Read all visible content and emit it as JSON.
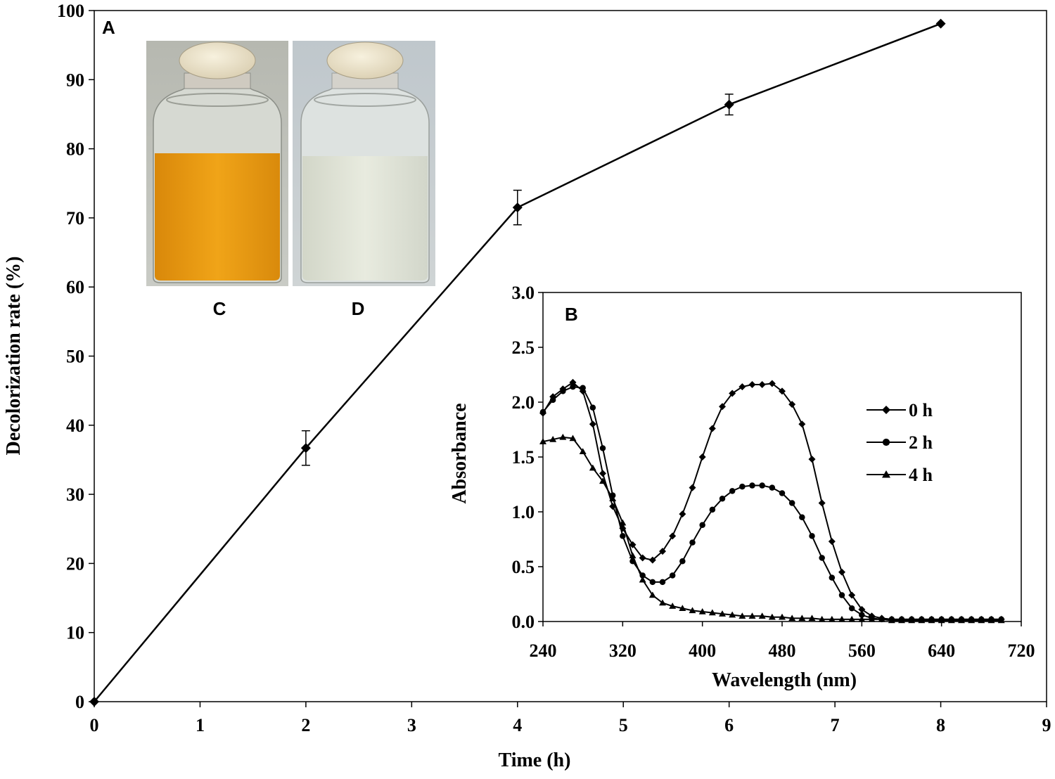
{
  "chart_data": [
    {
      "panel": "A",
      "type": "line",
      "xlabel": "Time (h)",
      "ylabel": "Decolorization  rate (%)",
      "xlim": [
        0,
        9
      ],
      "ylim": [
        0,
        100
      ],
      "x_ticks": [
        "0",
        "1",
        "2",
        "3",
        "4",
        "5",
        "6",
        "7",
        "8",
        "9"
      ],
      "y_ticks": [
        "0",
        "10",
        "20",
        "30",
        "40",
        "50",
        "60",
        "70",
        "80",
        "90",
        "100"
      ],
      "marker": "diamond",
      "color": "#000000",
      "series": [
        {
          "x": [
            0,
            2,
            4,
            6,
            8
          ],
          "y": [
            0,
            36.7,
            71.5,
            86.4,
            98.1
          ],
          "error": [
            0,
            2.5,
            2.5,
            1.5,
            0
          ]
        }
      ],
      "grid": false
    },
    {
      "panel": "B",
      "type": "line",
      "xlabel": "Wavelength (nm)",
      "ylabel": "Absorbance",
      "xlim": [
        240,
        720
      ],
      "ylim": [
        0,
        3.0
      ],
      "x_ticks": [
        "240",
        "320",
        "400",
        "480",
        "560",
        "640",
        "720"
      ],
      "y_ticks": [
        "0.0",
        "0.5",
        "1.0",
        "1.5",
        "2.0",
        "2.5",
        "3.0"
      ],
      "legend_position": "right",
      "grid": false,
      "series": [
        {
          "name": "0 h",
          "marker": "diamond",
          "x": [
            240,
            250,
            260,
            270,
            280,
            290,
            300,
            310,
            320,
            330,
            340,
            350,
            360,
            370,
            380,
            390,
            400,
            410,
            420,
            430,
            440,
            450,
            460,
            470,
            480,
            490,
            500,
            510,
            520,
            530,
            540,
            550,
            560,
            570,
            580,
            590,
            600,
            610,
            620,
            630,
            640,
            650,
            660,
            670,
            680,
            690,
            700
          ],
          "y": [
            1.9,
            2.05,
            2.12,
            2.18,
            2.1,
            1.8,
            1.35,
            1.05,
            0.85,
            0.7,
            0.58,
            0.56,
            0.64,
            0.78,
            0.98,
            1.22,
            1.5,
            1.76,
            1.96,
            2.08,
            2.14,
            2.16,
            2.16,
            2.17,
            2.1,
            1.98,
            1.8,
            1.48,
            1.08,
            0.73,
            0.45,
            0.24,
            0.11,
            0.05,
            0.03,
            0.02,
            0.02,
            0.02,
            0.02,
            0.02,
            0.02,
            0.02,
            0.02,
            0.02,
            0.02,
            0.02,
            0.02
          ]
        },
        {
          "name": "2 h",
          "marker": "circle",
          "x": [
            240,
            250,
            260,
            270,
            280,
            290,
            300,
            310,
            320,
            330,
            340,
            350,
            360,
            370,
            380,
            390,
            400,
            410,
            420,
            430,
            440,
            450,
            460,
            470,
            480,
            490,
            500,
            510,
            520,
            530,
            540,
            550,
            560,
            570,
            580,
            590,
            600,
            610,
            620,
            630,
            640,
            650,
            660,
            670,
            680,
            690,
            700
          ],
          "y": [
            1.91,
            2.02,
            2.1,
            2.14,
            2.13,
            1.95,
            1.58,
            1.15,
            0.78,
            0.55,
            0.42,
            0.36,
            0.36,
            0.42,
            0.55,
            0.72,
            0.88,
            1.02,
            1.12,
            1.19,
            1.23,
            1.24,
            1.24,
            1.22,
            1.17,
            1.08,
            0.95,
            0.78,
            0.58,
            0.4,
            0.24,
            0.12,
            0.06,
            0.03,
            0.02,
            0.02,
            0.02,
            0.02,
            0.02,
            0.02,
            0.02,
            0.02,
            0.02,
            0.02,
            0.02,
            0.02,
            0.02
          ]
        },
        {
          "name": "4 h",
          "marker": "triangle",
          "x": [
            240,
            250,
            260,
            270,
            280,
            290,
            300,
            310,
            320,
            330,
            340,
            350,
            360,
            370,
            380,
            390,
            400,
            410,
            420,
            430,
            440,
            450,
            460,
            470,
            480,
            490,
            500,
            510,
            520,
            530,
            540,
            550,
            560,
            570,
            580,
            590,
            600,
            610,
            620,
            630,
            640,
            650,
            660,
            670,
            680,
            690,
            700
          ],
          "y": [
            1.64,
            1.66,
            1.68,
            1.67,
            1.55,
            1.4,
            1.28,
            1.12,
            0.9,
            0.6,
            0.38,
            0.24,
            0.17,
            0.14,
            0.12,
            0.1,
            0.09,
            0.08,
            0.07,
            0.06,
            0.05,
            0.05,
            0.05,
            0.04,
            0.04,
            0.03,
            0.03,
            0.03,
            0.02,
            0.02,
            0.02,
            0.02,
            0.02,
            0.02,
            0.02,
            0.01,
            0.01,
            0.01,
            0.01,
            0.01,
            0.01,
            0.01,
            0.01,
            0.01,
            0.01,
            0.01,
            0.01
          ]
        }
      ]
    }
  ],
  "photos": {
    "left_label": "C",
    "right_label": "D",
    "left_liquid_color": "#e89a0e",
    "right_liquid_color": "#dde1d2"
  }
}
